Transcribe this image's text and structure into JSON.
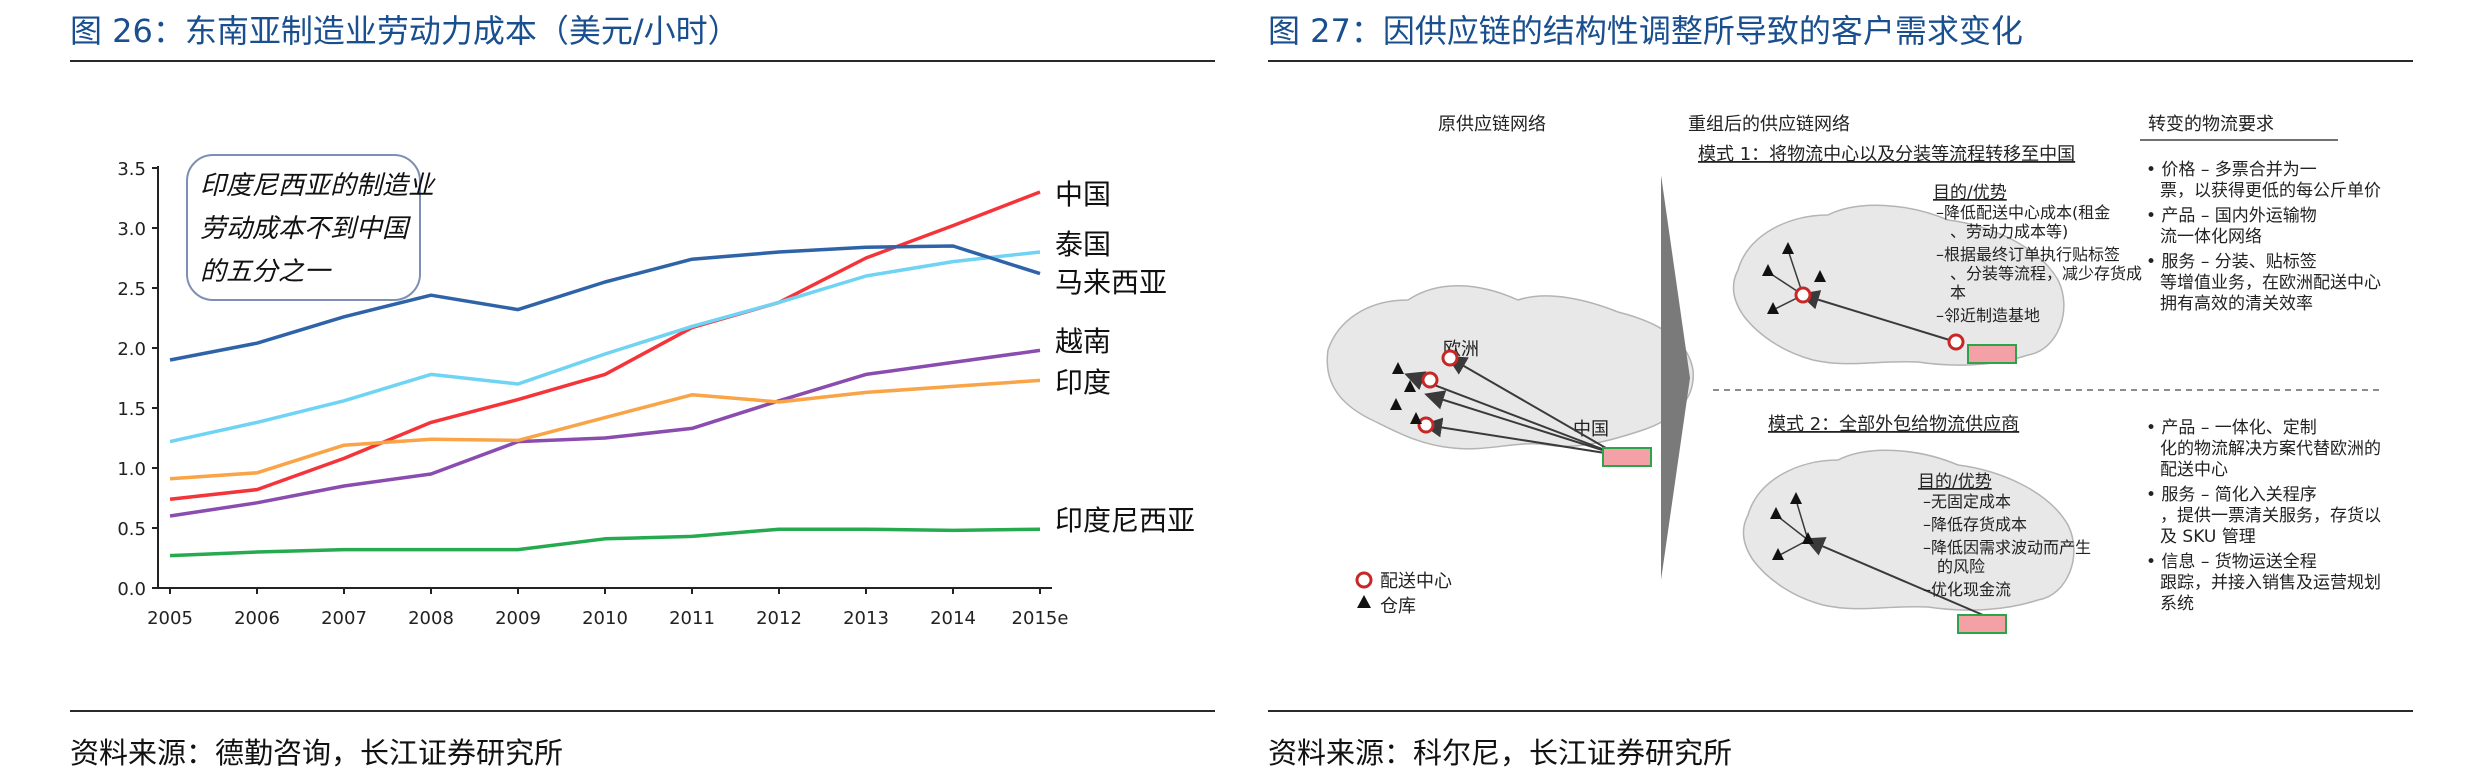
{
  "left": {
    "title": "图 26：东南亚制造业劳动力成本（美元/小时）",
    "source": "资料来源：德勤咨询，长江证券研究所"
  },
  "right": {
    "title": "图 27：因供应链的结构性调整所导致的客户需求变化",
    "source": "资料来源：科尔尼，长江证券研究所",
    "original_network_label": "原供应链网络",
    "restructured_network_label": "重组后的供应链网络",
    "requirements_header": "转变的物流要求",
    "europe_label": "欧洲",
    "china_label": "中国",
    "legend": {
      "distribution_center": "配送中心",
      "warehouse": "仓库"
    },
    "mode1": {
      "title": "模式 1：将物流中心以及分装等流程转移至中国",
      "purpose_title": "目的/优势",
      "purposes": [
        "–降低配送中心成本(租金、劳动力成本等)",
        "–根据最终订单执行贴标签、分装等流程，减少存货成本",
        "–邻近制造基地"
      ],
      "requirements": [
        "• 价格 – 多票合并为一票，以获得更低的每公斤单价",
        "• 产品 – 国内外运输物流一体化网络",
        "• 服务 – 分装、贴标签等增值业务，在欧洲配送中心拥有高效的清关效率"
      ]
    },
    "mode2": {
      "title": "模式 2：全部外包给物流供应商",
      "purpose_title": "目的/优势",
      "purposes": [
        "–无固定成本",
        "–降低存货成本",
        "–降低因需求波动而产生的风险",
        "–优化现金流"
      ],
      "requirements": [
        "• 产品 – 一体化、定制化的物流解决方案代替欧洲的配送中心",
        "• 服务 – 简化入关程序，提供一票清关服务，存货以及 SKU 管理",
        "• 信息 – 货物运送全程跟踪，并接入销售及运营规划系统"
      ]
    }
  },
  "chart_data": {
    "type": "line",
    "title": "东南亚制造业劳动力成本（美元/小时）",
    "xlabel": "",
    "ylabel": "",
    "categories": [
      "2005",
      "2006",
      "2007",
      "2008",
      "2009",
      "2010",
      "2011",
      "2012",
      "2013",
      "2014",
      "2015e"
    ],
    "ylim": [
      0,
      3.5
    ],
    "yticks": [
      "0.0",
      "0.5",
      "1.0",
      "1.5",
      "2.0",
      "2.5",
      "3.0",
      "3.5"
    ],
    "annotation": "印度尼西亚的制造业劳动成本不到中国的五分之一",
    "series": [
      {
        "name": "中国",
        "color": "#f5343a",
        "values": [
          0.74,
          0.82,
          1.08,
          1.38,
          1.57,
          1.78,
          2.17,
          2.38,
          2.75,
          3.02,
          3.3
        ]
      },
      {
        "name": "泰国",
        "color": "#6fd3f3",
        "values": [
          1.22,
          1.38,
          1.56,
          1.78,
          1.7,
          1.95,
          2.18,
          2.38,
          2.6,
          2.72,
          2.8
        ]
      },
      {
        "name": "马来西亚",
        "color": "#2e63a8",
        "values": [
          1.9,
          2.04,
          2.26,
          2.44,
          2.32,
          2.55,
          2.74,
          2.8,
          2.84,
          2.85,
          2.62
        ]
      },
      {
        "name": "越南",
        "color": "#8a4cae",
        "values": [
          0.6,
          0.71,
          0.85,
          0.95,
          1.22,
          1.25,
          1.33,
          1.56,
          1.78,
          1.88,
          1.98
        ]
      },
      {
        "name": "印度",
        "color": "#f9a447",
        "values": [
          0.91,
          0.96,
          1.19,
          1.24,
          1.23,
          1.42,
          1.61,
          1.55,
          1.63,
          1.68,
          1.73
        ]
      },
      {
        "name": "印度尼西亚",
        "color": "#26aa4f",
        "values": [
          0.27,
          0.3,
          0.32,
          0.32,
          0.32,
          0.41,
          0.43,
          0.49,
          0.49,
          0.48,
          0.49
        ]
      }
    ]
  },
  "colors": {
    "title": "#1a4f8f",
    "rule": "#2a2a2a",
    "map_land": "#e8e8e8",
    "map_outline": "#b4b4b4",
    "arrow_triangle": "#7a7a7a",
    "annotation_border": "#7d8fb3"
  }
}
